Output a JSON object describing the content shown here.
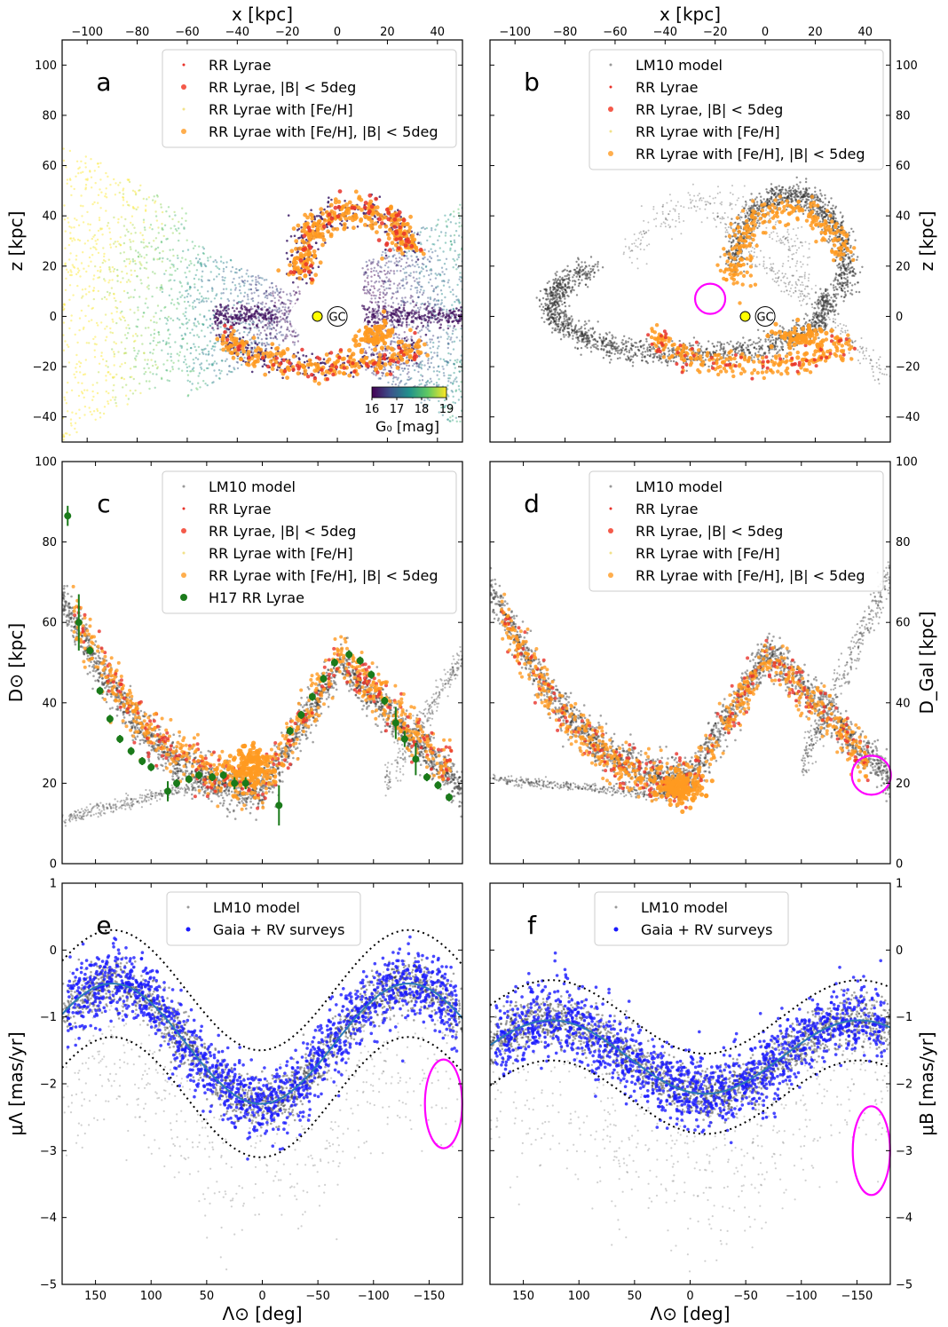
{
  "colors": {
    "lm10": "#333333",
    "rr_lyrae": "#e8322a",
    "rr_lyrae_lowB": "#f45a4a",
    "rr_feh": "#f2e28a",
    "rr_feh_lowB": "#ff9a20",
    "h17": "#1a7a1a",
    "gaia": "#1a1aff",
    "fit_curve": "#2a7ab8",
    "ellipse": "#ff00ff",
    "gc": "#ffff00"
  },
  "chart_data": [
    {
      "id": "a",
      "type": "scatter",
      "letter": "a",
      "xlabel_top": "x [kpc]",
      "ylabel_left": "z [kpc]",
      "ylabel_right": "",
      "xlim": [
        -110,
        50
      ],
      "ylim": [
        -50,
        110
      ],
      "xticks_top": [
        "−100",
        "−80",
        "−60",
        "−40",
        "−20",
        "0",
        "20",
        "40"
      ],
      "yticks_left": [
        "−40",
        "−20",
        "0",
        "20",
        "40",
        "60",
        "80",
        "100"
      ],
      "yticks_right": [],
      "legend": [
        "RR Lyrae",
        "RR Lyrae, |B| < 5deg",
        "RR Lyrae with [Fe/H]",
        "RR Lyrae with [Fe/H], |B| < 5deg"
      ],
      "gc_label": "GC",
      "sun_position": [
        -8,
        0
      ],
      "colorbar": {
        "ticks": [
          "16",
          "17",
          "18",
          "19"
        ],
        "label": "G₀ [mag]",
        "range": [
          16,
          19
        ]
      }
    },
    {
      "id": "b",
      "type": "scatter",
      "letter": "b",
      "xlabel_top": "x [kpc]",
      "ylabel_left": "",
      "ylabel_right": "z [kpc]",
      "xlim": [
        -110,
        50
      ],
      "ylim": [
        -50,
        110
      ],
      "xticks_top": [
        "−100",
        "−80",
        "−60",
        "−40",
        "−20",
        "0",
        "20",
        "40"
      ],
      "yticks_left": [],
      "yticks_right": [
        "−40",
        "−20",
        "0",
        "20",
        "40",
        "60",
        "80",
        "100"
      ],
      "legend": [
        "LM10 model",
        "RR Lyrae",
        "RR Lyrae, |B| < 5deg",
        "RR Lyrae with [Fe/H]",
        "RR Lyrae with [Fe/H], |B| < 5deg"
      ],
      "gc_label": "GC",
      "sun_position": [
        -8,
        0
      ],
      "highlight_ellipse_center": [
        -22,
        7
      ]
    },
    {
      "id": "c",
      "type": "scatter",
      "letter": "c",
      "ylabel_left": "D⊙ [kpc]",
      "ylabel_right": "",
      "xlim": [
        180,
        -180
      ],
      "ylim": [
        0,
        100
      ],
      "yticks_left": [
        "0",
        "20",
        "40",
        "60",
        "80",
        "100"
      ],
      "yticks_right": [],
      "legend": [
        "LM10 model",
        "RR Lyrae",
        "RR Lyrae, |B| < 5deg",
        "RR Lyrae with [Fe/H]",
        "RR Lyrae with [Fe/H], |B| < 5deg",
        "H17 RR Lyrae"
      ],
      "h17_points": [
        {
          "x": 175,
          "y": 86.5,
          "err": 2.5
        },
        {
          "x": 165,
          "y": 60,
          "err": 7
        },
        {
          "x": 155,
          "y": 53,
          "err": 1
        },
        {
          "x": 146,
          "y": 43,
          "err": 1
        },
        {
          "x": 137,
          "y": 36,
          "err": 1
        },
        {
          "x": 128,
          "y": 31,
          "err": 1
        },
        {
          "x": 118,
          "y": 28,
          "err": 1
        },
        {
          "x": 108,
          "y": 25.5,
          "err": 1
        },
        {
          "x": 100,
          "y": 24,
          "err": 1
        },
        {
          "x": 85,
          "y": 18,
          "err": 2.5
        },
        {
          "x": 77,
          "y": 20,
          "err": 1
        },
        {
          "x": 66,
          "y": 21,
          "err": 1
        },
        {
          "x": 57,
          "y": 22,
          "err": 1
        },
        {
          "x": 45,
          "y": 21.5,
          "err": 1
        },
        {
          "x": 35,
          "y": 22,
          "err": 1
        },
        {
          "x": 25,
          "y": 20,
          "err": 1.5
        },
        {
          "x": 15,
          "y": 20,
          "err": 1.5
        },
        {
          "x": -15,
          "y": 14.5,
          "err": 5
        },
        {
          "x": -25,
          "y": 33,
          "err": 1
        },
        {
          "x": -35,
          "y": 37,
          "err": 1
        },
        {
          "x": -45,
          "y": 41.5,
          "err": 1
        },
        {
          "x": -55,
          "y": 46,
          "err": 1
        },
        {
          "x": -65,
          "y": 50,
          "err": 1
        },
        {
          "x": -78,
          "y": 52,
          "err": 1
        },
        {
          "x": -88,
          "y": 50.5,
          "err": 1
        },
        {
          "x": -98,
          "y": 47,
          "err": 1
        },
        {
          "x": -110,
          "y": 40.5,
          "err": 1
        },
        {
          "x": -120,
          "y": 35,
          "err": 4
        },
        {
          "x": -128,
          "y": 31,
          "err": 2
        },
        {
          "x": -138,
          "y": 26,
          "err": 4
        },
        {
          "x": -148,
          "y": 21.5,
          "err": 1
        },
        {
          "x": -158,
          "y": 19.5,
          "err": 1
        },
        {
          "x": -168,
          "y": 16.5,
          "err": 1
        }
      ]
    },
    {
      "id": "d",
      "type": "scatter",
      "letter": "d",
      "ylabel_left": "",
      "ylabel_right": "D_Gal [kpc]",
      "xlim": [
        180,
        -180
      ],
      "ylim": [
        0,
        100
      ],
      "yticks_left": [],
      "yticks_right": [
        "0",
        "20",
        "40",
        "60",
        "80",
        "100"
      ],
      "legend": [
        "LM10 model",
        "RR Lyrae",
        "RR Lyrae, |B| < 5deg",
        "RR Lyrae with [Fe/H]",
        "RR Lyrae with [Fe/H], |B| < 5deg"
      ],
      "highlight_ellipse_center": [
        -163,
        22
      ]
    },
    {
      "id": "e",
      "type": "scatter",
      "letter": "e",
      "xlabel": "Λ⊙ [deg]",
      "ylabel_left": "μΛ [mas/yr]",
      "ylabel_right": "",
      "xlim": [
        180,
        -180
      ],
      "ylim": [
        -5,
        1
      ],
      "xticks": [
        "150",
        "100",
        "50",
        "0",
        "−50",
        "−100",
        "−150"
      ],
      "yticks_left": [
        "−5",
        "−4",
        "−3",
        "−2",
        "−1",
        "0",
        "1"
      ],
      "yticks_right": [],
      "legend": [
        "LM10 model",
        "Gaia + RV surveys"
      ],
      "fit": {
        "mean": -1.4,
        "amp": 0.9,
        "freq": 1.35,
        "phase": 135,
        "band": 0.8
      },
      "highlight_ellipse_center": [
        -163,
        -2.3
      ]
    },
    {
      "id": "f",
      "type": "scatter",
      "letter": "f",
      "xlabel": "Λ⊙ [deg]",
      "ylabel_left": "",
      "ylabel_right": "μB [mas/yr]",
      "xlim": [
        180,
        -180
      ],
      "ylim": [
        -5,
        1
      ],
      "xticks": [
        "150",
        "100",
        "50",
        "0",
        "−50",
        "−100",
        "−150"
      ],
      "yticks_left": [],
      "yticks_right": [
        "−5",
        "−4",
        "−3",
        "−2",
        "−1",
        "0",
        "1"
      ],
      "legend": [
        "LM10 model",
        "Gaia + RV surveys"
      ],
      "fit": {
        "mean": -1.6,
        "amp": 0.55,
        "freq": 1.3,
        "phase": 125,
        "band": 0.6
      },
      "highlight_ellipse_center": [
        -163,
        -3.0
      ]
    }
  ]
}
